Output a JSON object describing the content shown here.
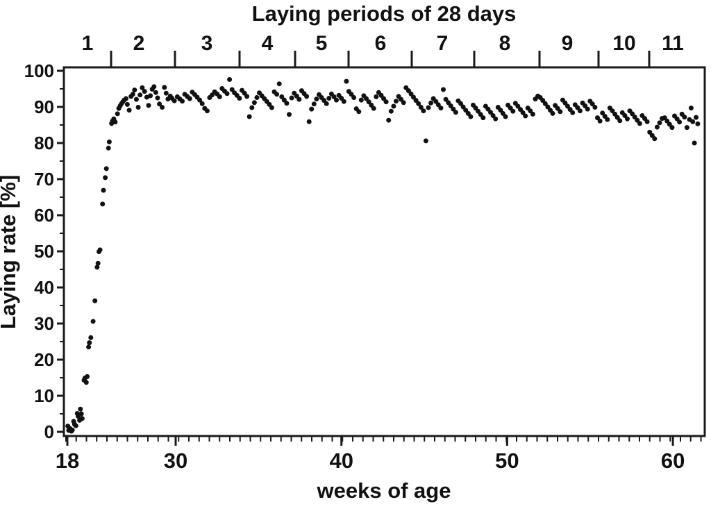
{
  "top_title": "Laying periods of 28 days",
  "x_axis_label": "weeks of age",
  "y_axis_label": "Laying rate [%]",
  "colors": {
    "dot": "#111111",
    "axis": "#1a1a1a",
    "background": "#ffffff"
  },
  "chart_data": {
    "type": "scatter",
    "title": "Laying periods of 28 days",
    "xlabel": "weeks of age",
    "ylabel": "Laying rate [%]",
    "xlim": [
      18,
      61.8
    ],
    "ylim": [
      0,
      100
    ],
    "y_ticks": [
      0,
      10,
      20,
      30,
      40,
      50,
      60,
      70,
      80,
      90,
      100
    ],
    "x_tick_labels": [
      18,
      30,
      40,
      50,
      60
    ],
    "grid": false,
    "legend": "none",
    "top_axis": {
      "label": "Laying periods of 28 days",
      "period_labels": [
        "1",
        "2",
        "3",
        "4",
        "5",
        "6",
        "7",
        "8",
        "9",
        "10",
        "11"
      ],
      "period_length_days": 28
    },
    "points": [
      [
        18.05,
        1.6
      ],
      [
        18.15,
        0.4
      ],
      [
        18.3,
        0.9
      ],
      [
        18.45,
        0.2
      ],
      [
        18.55,
        0.5
      ],
      [
        18.7,
        2.9
      ],
      [
        18.8,
        2.1
      ],
      [
        18.95,
        1.7
      ],
      [
        19.1,
        5.1
      ],
      [
        19.2,
        4.3
      ],
      [
        19.35,
        3.2
      ],
      [
        19.45,
        6.3
      ],
      [
        19.55,
        5.0
      ],
      [
        19.65,
        3.7
      ],
      [
        19.85,
        14.3
      ],
      [
        19.95,
        14.9
      ],
      [
        20.1,
        13.7
      ],
      [
        20.2,
        15.3
      ],
      [
        20.35,
        23.5
      ],
      [
        20.45,
        24.7
      ],
      [
        20.6,
        26.1
      ],
      [
        20.85,
        30.6
      ],
      [
        21.05,
        36.3
      ],
      [
        21.3,
        45.6
      ],
      [
        21.4,
        46.7
      ],
      [
        21.5,
        49.9
      ],
      [
        21.62,
        50.4
      ],
      [
        21.9,
        63.1
      ],
      [
        22.0,
        66.9
      ],
      [
        22.2,
        70.4
      ],
      [
        22.32,
        72.9
      ],
      [
        22.55,
        78.6
      ],
      [
        22.65,
        80.3
      ],
      [
        22.9,
        85.4
      ],
      [
        23.0,
        86.1
      ],
      [
        23.15,
        86.7
      ],
      [
        23.3,
        85.8
      ],
      [
        23.55,
        88.1
      ],
      [
        23.7,
        89.6
      ],
      [
        23.85,
        90.3
      ],
      [
        24.0,
        90.9
      ],
      [
        24.15,
        91.4
      ],
      [
        24.3,
        91.9
      ],
      [
        24.5,
        92.3
      ],
      [
        24.65,
        90.7
      ],
      [
        24.85,
        89.1
      ],
      [
        25.05,
        92.9
      ],
      [
        25.25,
        93.5
      ],
      [
        25.45,
        94.7
      ],
      [
        25.65,
        92.1
      ],
      [
        25.85,
        89.9
      ],
      [
        26.05,
        93.3
      ],
      [
        26.3,
        95.3
      ],
      [
        26.55,
        94.3
      ],
      [
        26.8,
        92.7
      ],
      [
        27.0,
        90.4
      ],
      [
        27.2,
        93.1
      ],
      [
        27.4,
        94.9
      ],
      [
        27.6,
        95.6
      ],
      [
        27.8,
        94.0
      ],
      [
        28.0,
        92.5
      ],
      [
        28.2,
        90.8
      ],
      [
        28.5,
        89.9
      ],
      [
        28.75,
        95.4
      ],
      [
        28.95,
        93.8
      ],
      [
        29.15,
        92.2
      ],
      [
        29.4,
        93.0
      ],
      [
        29.6,
        92.4
      ],
      [
        29.85,
        91.7
      ],
      [
        30.1,
        92.8
      ],
      [
        30.25,
        92.2
      ],
      [
        30.4,
        91.6
      ],
      [
        30.55,
        93.5
      ],
      [
        30.7,
        92.9
      ],
      [
        30.85,
        92.3
      ],
      [
        31.0,
        94.1
      ],
      [
        31.15,
        93.4
      ],
      [
        31.3,
        92.7
      ],
      [
        31.45,
        91.9
      ],
      [
        31.6,
        90.9
      ],
      [
        31.75,
        89.6
      ],
      [
        31.9,
        88.9
      ],
      [
        32.05,
        92.6
      ],
      [
        32.2,
        93.3
      ],
      [
        32.35,
        94.2
      ],
      [
        32.5,
        93.6
      ],
      [
        32.65,
        92.8
      ],
      [
        32.8,
        95.1
      ],
      [
        32.95,
        94.4
      ],
      [
        33.1,
        93.7
      ],
      [
        33.25,
        97.6
      ],
      [
        33.4,
        94.8
      ],
      [
        33.55,
        93.9
      ],
      [
        33.7,
        93.2
      ],
      [
        33.85,
        92.4
      ],
      [
        34.0,
        94.6
      ],
      [
        34.15,
        93.8
      ],
      [
        34.3,
        92.9
      ],
      [
        34.45,
        87.3
      ],
      [
        34.6,
        89.8
      ],
      [
        34.75,
        91.2
      ],
      [
        34.9,
        92.6
      ],
      [
        35.05,
        93.9
      ],
      [
        35.2,
        93.1
      ],
      [
        35.35,
        92.3
      ],
      [
        35.5,
        91.5
      ],
      [
        35.65,
        90.7
      ],
      [
        35.8,
        89.8
      ],
      [
        35.95,
        94.2
      ],
      [
        36.1,
        93.5
      ],
      [
        36.25,
        96.4
      ],
      [
        36.4,
        92.8
      ],
      [
        36.55,
        91.9
      ],
      [
        36.7,
        91.0
      ],
      [
        36.85,
        87.9
      ],
      [
        37.0,
        92.5
      ],
      [
        37.15,
        93.8
      ],
      [
        37.3,
        93.0
      ],
      [
        37.45,
        92.1
      ],
      [
        37.6,
        94.5
      ],
      [
        37.75,
        93.7
      ],
      [
        37.9,
        92.9
      ],
      [
        38.05,
        85.9
      ],
      [
        38.2,
        89.4
      ],
      [
        38.35,
        90.8
      ],
      [
        38.5,
        92.2
      ],
      [
        38.65,
        93.4
      ],
      [
        38.8,
        92.6
      ],
      [
        38.95,
        91.8
      ],
      [
        39.1,
        90.9
      ],
      [
        39.25,
        92.4
      ],
      [
        39.4,
        93.6
      ],
      [
        39.55,
        92.8
      ],
      [
        39.7,
        91.9
      ],
      [
        39.85,
        93.2
      ],
      [
        40.0,
        92.4
      ],
      [
        40.15,
        91.5
      ],
      [
        40.3,
        97.1
      ],
      [
        40.45,
        94.3
      ],
      [
        40.6,
        93.5
      ],
      [
        40.75,
        92.6
      ],
      [
        40.9,
        89.5
      ],
      [
        41.05,
        88.7
      ],
      [
        41.2,
        91.9
      ],
      [
        41.35,
        93.1
      ],
      [
        41.5,
        92.3
      ],
      [
        41.65,
        91.4
      ],
      [
        41.8,
        90.5
      ],
      [
        41.95,
        89.6
      ],
      [
        42.1,
        92.8
      ],
      [
        42.25,
        94.0
      ],
      [
        42.4,
        93.2
      ],
      [
        42.55,
        92.3
      ],
      [
        42.7,
        91.4
      ],
      [
        42.85,
        86.3
      ],
      [
        43.0,
        88.8
      ],
      [
        43.15,
        90.2
      ],
      [
        43.3,
        91.6
      ],
      [
        43.45,
        92.9
      ],
      [
        43.6,
        92.1
      ],
      [
        43.75,
        91.2
      ],
      [
        43.9,
        95.3
      ],
      [
        44.05,
        94.5
      ],
      [
        44.2,
        93.6
      ],
      [
        44.35,
        92.7
      ],
      [
        44.5,
        91.8
      ],
      [
        44.65,
        90.9
      ],
      [
        44.8,
        89.9
      ],
      [
        44.95,
        88.9
      ],
      [
        45.1,
        80.6
      ],
      [
        45.25,
        89.8
      ],
      [
        45.4,
        91.1
      ],
      [
        45.55,
        92.3
      ],
      [
        45.7,
        91.5
      ],
      [
        45.85,
        90.6
      ],
      [
        46.0,
        89.7
      ],
      [
        46.15,
        94.8
      ],
      [
        46.3,
        92.1
      ],
      [
        46.45,
        91.2
      ],
      [
        46.6,
        90.3
      ],
      [
        46.75,
        89.4
      ],
      [
        46.9,
        88.5
      ],
      [
        47.05,
        91.7
      ],
      [
        47.2,
        90.9
      ],
      [
        47.35,
        90.0
      ],
      [
        47.5,
        89.1
      ],
      [
        47.65,
        88.2
      ],
      [
        47.8,
        87.3
      ],
      [
        47.95,
        90.5
      ],
      [
        48.1,
        89.7
      ],
      [
        48.25,
        88.8
      ],
      [
        48.4,
        87.9
      ],
      [
        48.55,
        87.0
      ],
      [
        48.7,
        90.2
      ],
      [
        48.85,
        89.4
      ],
      [
        49.0,
        88.5
      ],
      [
        49.15,
        87.6
      ],
      [
        49.3,
        86.7
      ],
      [
        49.45,
        89.9
      ],
      [
        49.6,
        89.1
      ],
      [
        49.75,
        88.2
      ],
      [
        49.9,
        87.3
      ],
      [
        50.05,
        90.5
      ],
      [
        50.2,
        89.7
      ],
      [
        50.35,
        88.8
      ],
      [
        50.5,
        91.0
      ],
      [
        50.65,
        90.2
      ],
      [
        50.8,
        89.3
      ],
      [
        50.95,
        88.4
      ],
      [
        51.1,
        87.5
      ],
      [
        51.25,
        89.7
      ],
      [
        51.4,
        88.9
      ],
      [
        51.55,
        88.0
      ],
      [
        51.7,
        92.2
      ],
      [
        51.85,
        93.0
      ],
      [
        52.0,
        92.6
      ],
      [
        52.15,
        91.8
      ],
      [
        52.3,
        90.9
      ],
      [
        52.45,
        90.0
      ],
      [
        52.6,
        89.1
      ],
      [
        52.75,
        88.2
      ],
      [
        52.9,
        90.4
      ],
      [
        53.05,
        89.6
      ],
      [
        53.2,
        88.7
      ],
      [
        53.35,
        91.9
      ],
      [
        53.5,
        91.1
      ],
      [
        53.65,
        90.2
      ],
      [
        53.8,
        89.3
      ],
      [
        53.95,
        88.4
      ],
      [
        54.1,
        90.6
      ],
      [
        54.25,
        89.8
      ],
      [
        54.4,
        88.9
      ],
      [
        54.55,
        91.1
      ],
      [
        54.7,
        90.3
      ],
      [
        54.85,
        89.4
      ],
      [
        55.0,
        91.6
      ],
      [
        55.15,
        90.8
      ],
      [
        55.3,
        89.9
      ],
      [
        55.45,
        87.0
      ],
      [
        55.6,
        86.1
      ],
      [
        55.75,
        88.3
      ],
      [
        55.9,
        87.4
      ],
      [
        56.05,
        86.5
      ],
      [
        56.2,
        89.7
      ],
      [
        56.35,
        88.9
      ],
      [
        56.5,
        88.0
      ],
      [
        56.65,
        87.1
      ],
      [
        56.8,
        86.2
      ],
      [
        56.95,
        88.4
      ],
      [
        57.1,
        87.6
      ],
      [
        57.25,
        86.7
      ],
      [
        57.4,
        88.9
      ],
      [
        57.55,
        88.1
      ],
      [
        57.7,
        87.2
      ],
      [
        57.85,
        86.3
      ],
      [
        58.0,
        85.4
      ],
      [
        58.15,
        87.6
      ],
      [
        58.3,
        86.8
      ],
      [
        58.45,
        85.9
      ],
      [
        58.6,
        83.0
      ],
      [
        58.75,
        82.1
      ],
      [
        58.9,
        81.2
      ],
      [
        59.05,
        84.4
      ],
      [
        59.2,
        85.6
      ],
      [
        59.35,
        86.8
      ],
      [
        59.5,
        87.0
      ],
      [
        59.65,
        86.1
      ],
      [
        59.8,
        85.2
      ],
      [
        59.95,
        84.3
      ],
      [
        60.1,
        87.5
      ],
      [
        60.25,
        86.7
      ],
      [
        60.4,
        85.8
      ],
      [
        60.55,
        88.0
      ],
      [
        60.7,
        87.2
      ],
      [
        60.85,
        84.3
      ],
      [
        61.0,
        86.5
      ],
      [
        61.1,
        89.7
      ],
      [
        61.2,
        85.9
      ],
      [
        61.3,
        80.0
      ],
      [
        61.4,
        87.1
      ],
      [
        61.5,
        85.3
      ]
    ]
  }
}
